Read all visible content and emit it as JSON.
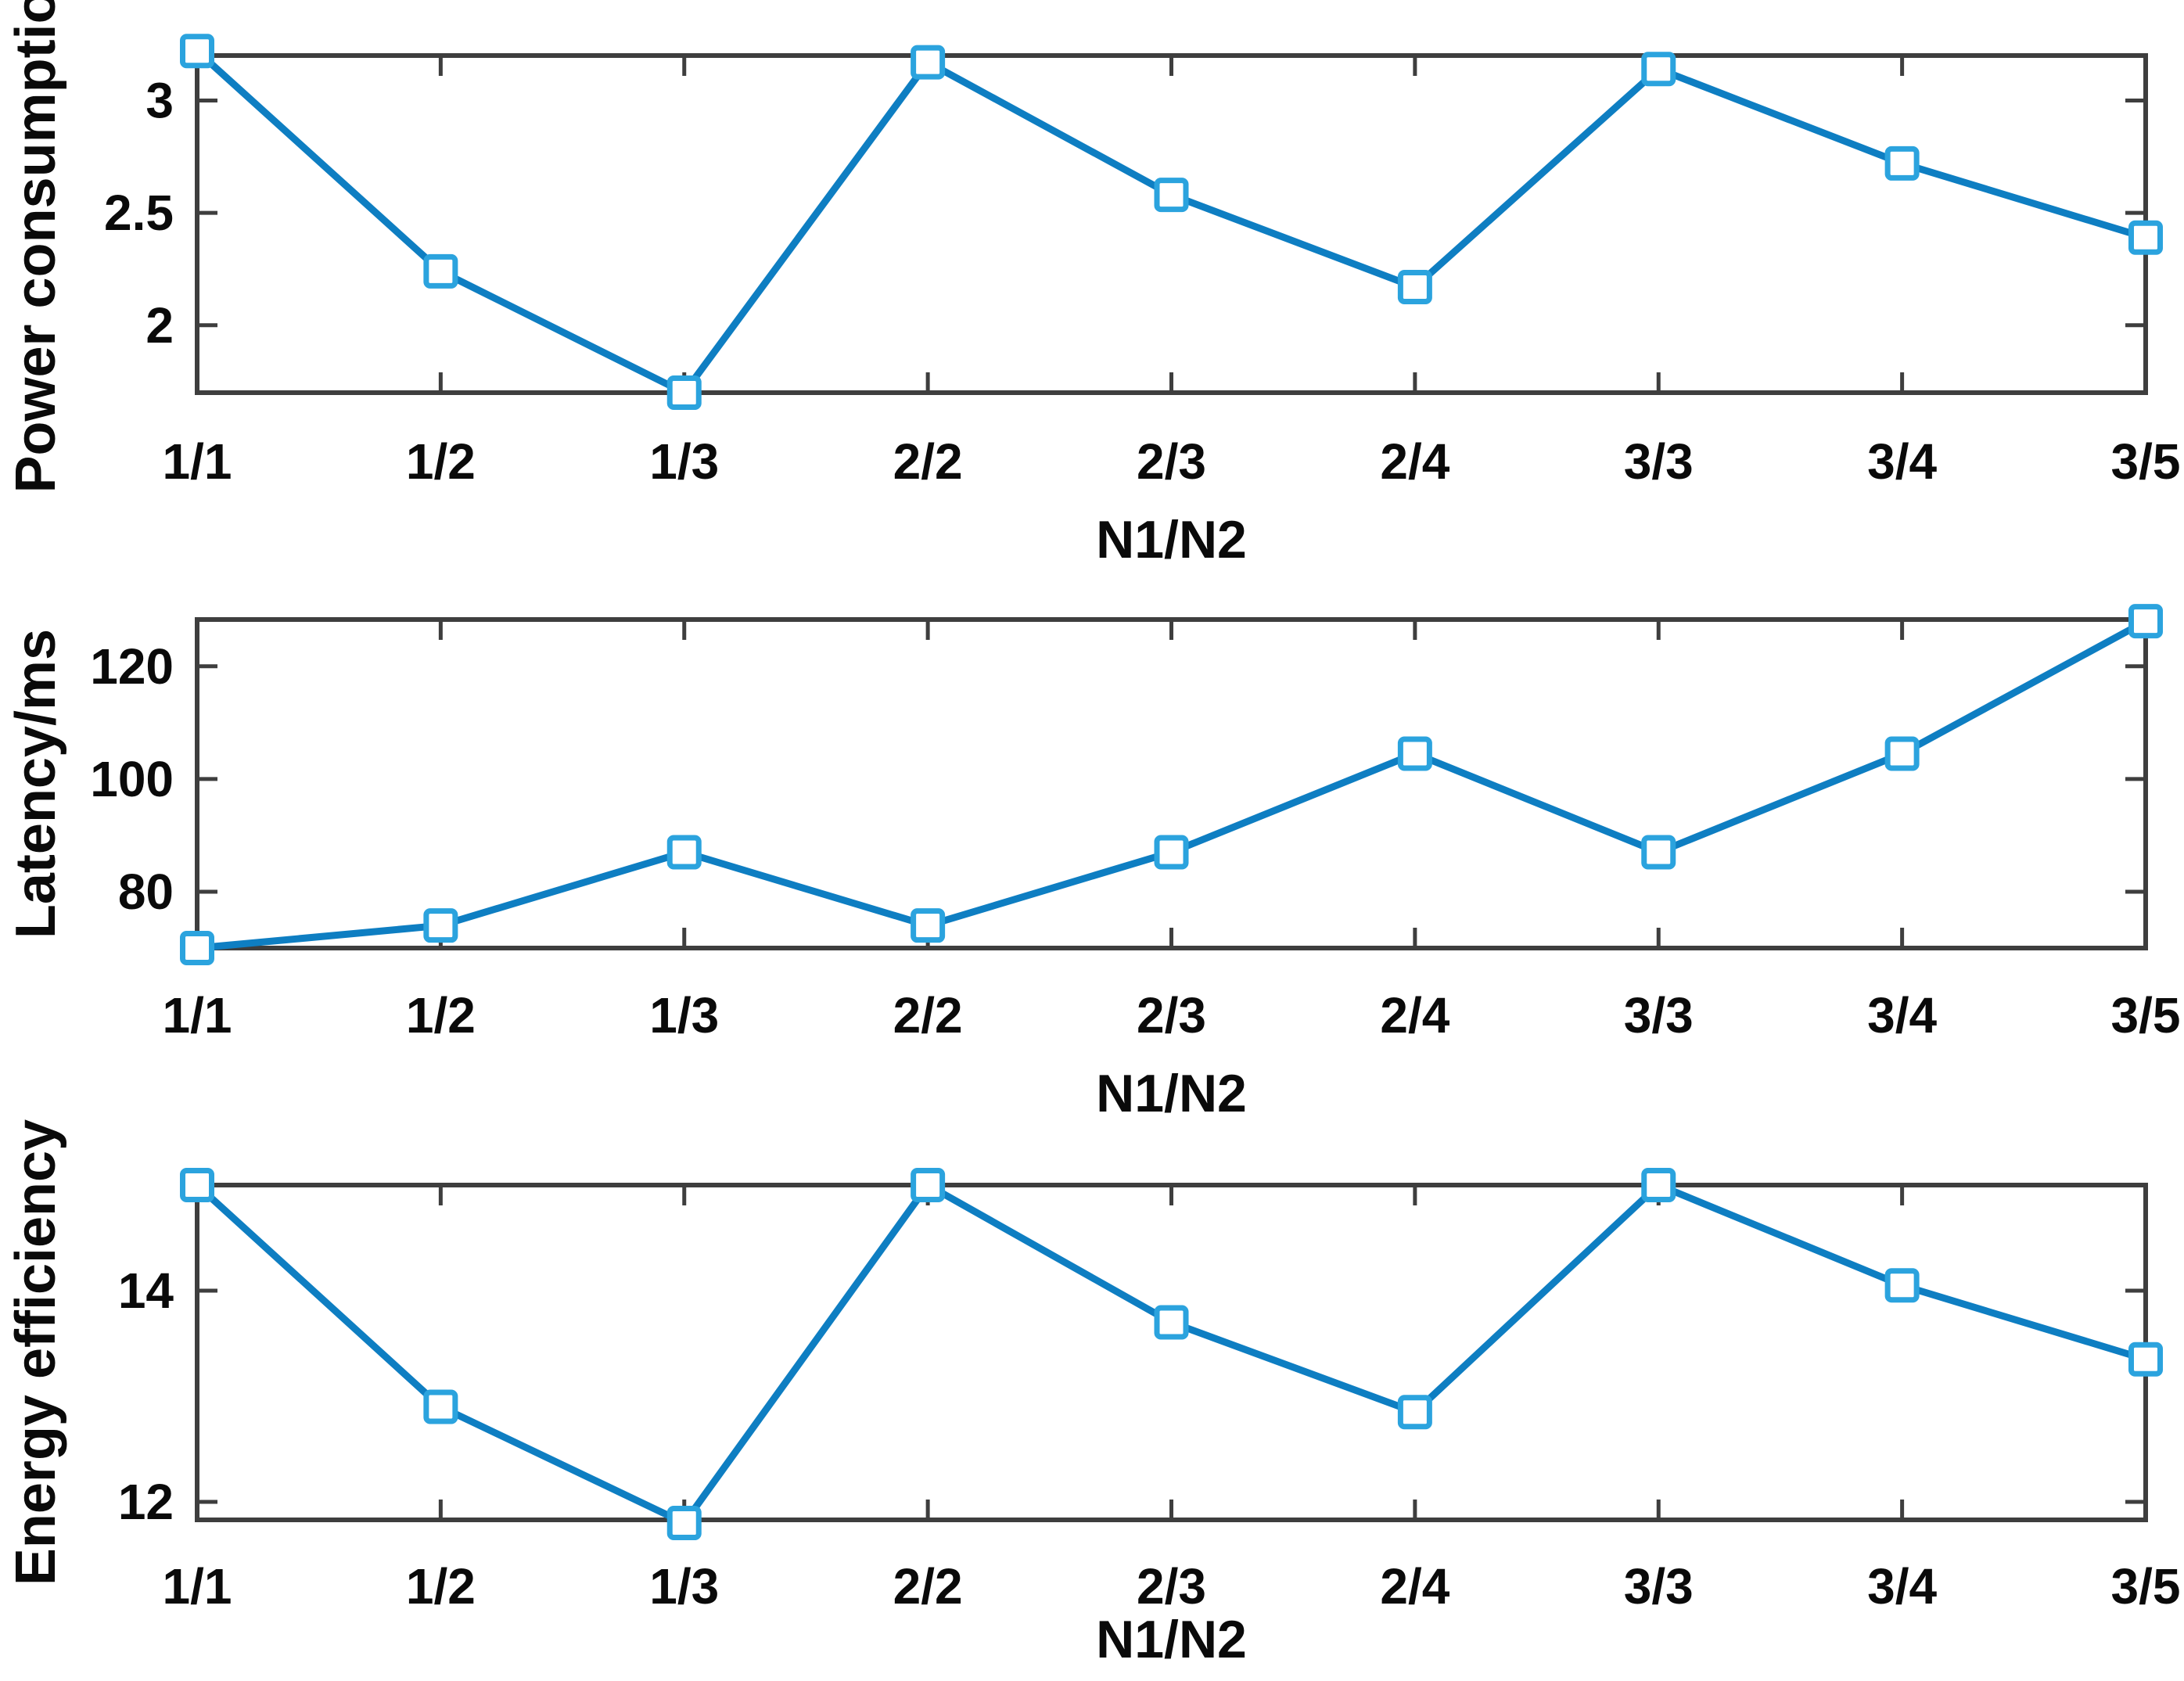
{
  "figure": {
    "background": "#ffffff",
    "line_color": "#0e7ec2",
    "marker_edge_color": "#2ba3de",
    "marker_fill": "#ffffff",
    "axis_color": "#3e3e3e",
    "text_color": "#0a0a0a"
  },
  "chart_data": [
    {
      "type": "line",
      "ylabel": "Power consumption",
      "xlabel": "N1/N2",
      "categories": [
        "1/1",
        "1/2",
        "1/3",
        "2/2",
        "2/3",
        "2/4",
        "3/3",
        "3/4",
        "3/5"
      ],
      "values": [
        3.22,
        2.24,
        1.7,
        3.17,
        2.58,
        2.17,
        3.14,
        2.72,
        2.39
      ],
      "yticks": [
        2,
        2.5,
        3
      ],
      "ytick_labels": [
        "2",
        "2.5",
        "3"
      ],
      "ylim": [
        1.7,
        3.2
      ],
      "grid": false,
      "legend": null,
      "marker": "square"
    },
    {
      "type": "line",
      "ylabel": "Latency/ms",
      "xlabel": "N1/N2",
      "categories": [
        "1/1",
        "1/2",
        "1/3",
        "2/2",
        "2/3",
        "2/4",
        "3/3",
        "3/4",
        "3/5"
      ],
      "values": [
        70,
        74,
        87,
        74,
        87,
        104.5,
        87,
        104.5,
        128
      ],
      "yticks": [
        80,
        100,
        120
      ],
      "ytick_labels": [
        "80",
        "100",
        "120"
      ],
      "ylim": [
        70,
        128.3
      ],
      "grid": false,
      "legend": null,
      "marker": "square"
    },
    {
      "type": "line",
      "ylabel": "Energy efficiency",
      "xlabel": "N1/N2",
      "categories": [
        "1/1",
        "1/2",
        "1/3",
        "2/2",
        "2/3",
        "2/4",
        "3/3",
        "3/4",
        "3/5"
      ],
      "values": [
        15.0,
        12.9,
        11.8,
        15.0,
        13.7,
        12.85,
        15.0,
        14.05,
        13.35
      ],
      "yticks": [
        12,
        14
      ],
      "ytick_labels": [
        "12",
        "14"
      ],
      "ylim": [
        11.83,
        15.0
      ],
      "grid": false,
      "legend": null,
      "marker": "square"
    }
  ]
}
